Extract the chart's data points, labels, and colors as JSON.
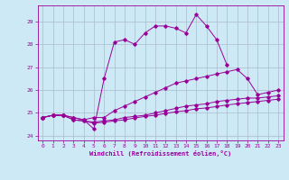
{
  "xlabel": "Windchill (Refroidissement éolien,°C)",
  "background_color": "#cce9f5",
  "line_color": "#990099",
  "grid_color": "#aabbcc",
  "xlim": [
    -0.5,
    23.5
  ],
  "ylim": [
    23.8,
    29.7
  ],
  "yticks": [
    24,
    25,
    26,
    27,
    28,
    29
  ],
  "xticks": [
    0,
    1,
    2,
    3,
    4,
    5,
    6,
    7,
    8,
    9,
    10,
    11,
    12,
    13,
    14,
    15,
    16,
    17,
    18,
    19,
    20,
    21,
    22,
    23
  ],
  "series": [
    [
      24.8,
      24.9,
      24.9,
      24.8,
      24.7,
      24.3,
      26.5,
      28.1,
      28.2,
      28.0,
      28.5,
      28.8,
      28.8,
      28.7,
      28.5,
      29.3,
      28.8,
      28.2,
      27.1,
      null,
      null,
      null,
      null,
      null
    ],
    [
      24.8,
      24.9,
      24.9,
      24.8,
      24.7,
      24.8,
      24.8,
      25.1,
      25.3,
      25.5,
      25.7,
      25.9,
      26.1,
      26.3,
      26.4,
      26.5,
      26.6,
      26.7,
      26.8,
      26.9,
      26.5,
      25.8,
      25.9,
      26.0
    ],
    [
      24.8,
      24.9,
      24.9,
      24.7,
      24.65,
      24.6,
      24.65,
      24.7,
      24.8,
      24.85,
      24.9,
      25.0,
      25.1,
      25.2,
      25.3,
      25.35,
      25.4,
      25.5,
      25.55,
      25.6,
      25.65,
      25.65,
      25.7,
      25.75
    ],
    [
      24.8,
      24.9,
      24.9,
      24.7,
      24.65,
      24.55,
      24.6,
      24.65,
      24.7,
      24.78,
      24.85,
      24.9,
      24.98,
      25.05,
      25.1,
      25.18,
      25.22,
      25.28,
      25.35,
      25.4,
      25.45,
      25.5,
      25.55,
      25.6
    ]
  ]
}
